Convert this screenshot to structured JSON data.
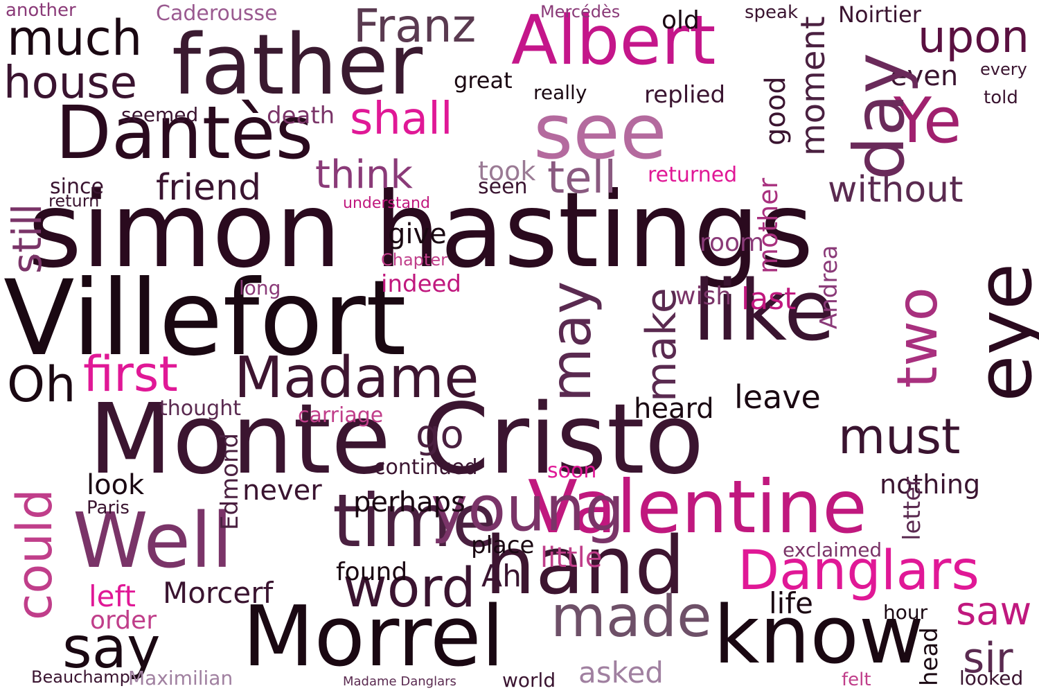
{
  "words": [
    {
      "text": "simon hastings",
      "color": "#2a0a1e",
      "weight": 1.0
    },
    {
      "text": "Villefort",
      "color": "#1a0812",
      "weight": 0.97
    },
    {
      "text": "Monte Cristo",
      "color": "#3b1530",
      "weight": 0.97
    },
    {
      "text": "Albert",
      "color": "#c4168a",
      "weight": 0.62
    },
    {
      "text": "father",
      "color": "#3a1a30",
      "weight": 0.7
    },
    {
      "text": "Dantès",
      "color": "#2a0a1e",
      "weight": 0.62
    },
    {
      "text": "Valentine",
      "color": "#c0187e",
      "weight": 0.62
    },
    {
      "text": "Morrel",
      "color": "#1a0812",
      "weight": 0.66
    },
    {
      "text": "know",
      "color": "#1a0812",
      "weight": 0.64
    },
    {
      "text": "hand",
      "color": "#3d1530",
      "weight": 0.64
    },
    {
      "text": "Madame",
      "color": "#3d1530",
      "weight": 0.45
    },
    {
      "text": "Danglars",
      "color": "#e01896",
      "weight": 0.45
    },
    {
      "text": "Well",
      "color": "#7a3468",
      "weight": 0.6
    },
    {
      "text": "like",
      "color": "#3a1430",
      "weight": 0.62
    },
    {
      "text": "see",
      "color": "#b46a9e",
      "weight": 0.58
    },
    {
      "text": "time",
      "color": "#4a2040",
      "weight": 0.55
    },
    {
      "text": "say",
      "color": "#1a0812",
      "weight": 0.5
    },
    {
      "text": "made",
      "color": "#6e5068",
      "weight": 0.42
    },
    {
      "text": "young",
      "color": "#7a3468",
      "weight": 0.42
    },
    {
      "text": "Ye",
      "color": "#a0206e",
      "weight": 0.55
    },
    {
      "text": "eye",
      "color": "#2a0a1e",
      "weight": 0.5
    },
    {
      "text": "two",
      "color": "#a8307e",
      "weight": 0.55
    },
    {
      "text": "day",
      "color": "#6a2a5a",
      "weight": 0.45
    },
    {
      "text": "may",
      "color": "#5a2a50",
      "weight": 0.48
    },
    {
      "text": "much",
      "color": "#1a0812",
      "weight": 0.4
    },
    {
      "text": "house",
      "color": "#3a1430",
      "weight": 0.4
    },
    {
      "text": "Franz",
      "color": "#5a3a50",
      "weight": 0.4
    },
    {
      "text": "upon",
      "color": "#5a1040",
      "weight": 0.36
    },
    {
      "text": "first",
      "color": "#e01896",
      "weight": 0.4
    },
    {
      "text": "Oh",
      "color": "#1a0812",
      "weight": 0.36
    },
    {
      "text": "could",
      "color": "#c03e8a",
      "weight": 0.42
    },
    {
      "text": "word",
      "color": "#3a1430",
      "weight": 0.4
    },
    {
      "text": "must",
      "color": "#3a1430",
      "weight": 0.38
    },
    {
      "text": "shall",
      "color": "#e01896",
      "weight": 0.36
    },
    {
      "text": "tell",
      "color": "#8a5a80",
      "weight": 0.36
    },
    {
      "text": "still",
      "color": "#7a3468",
      "weight": 0.38
    },
    {
      "text": "friend",
      "color": "#3a1430",
      "weight": 0.3
    },
    {
      "text": "think",
      "color": "#8a3a78",
      "weight": 0.3
    },
    {
      "text": "without",
      "color": "#5a2a50",
      "weight": 0.3
    },
    {
      "text": "moment",
      "color": "#4a2040",
      "weight": 0.28
    },
    {
      "text": "make",
      "color": "#5a2a50",
      "weight": 0.34
    },
    {
      "text": "go",
      "color": "#4a2040",
      "weight": 0.3
    },
    {
      "text": "sir",
      "color": "#5a2a50",
      "weight": 0.3
    },
    {
      "text": "saw",
      "color": "#c0187e",
      "weight": 0.3
    },
    {
      "text": "asked",
      "color": "#a080a0",
      "weight": 0.24
    },
    {
      "text": "left",
      "color": "#e01896",
      "weight": 0.24
    },
    {
      "text": "Morcerf",
      "color": "#3a1430",
      "weight": 0.24
    },
    {
      "text": "Maximilian",
      "color": "#a080a0",
      "weight": 0.18
    },
    {
      "text": "Beauchamp",
      "color": "#3a1430",
      "weight": 0.14
    },
    {
      "text": "Caderousse",
      "color": "#9a5a90",
      "weight": 0.16
    },
    {
      "text": "Noirtier",
      "color": "#3a1430",
      "weight": 0.16
    },
    {
      "text": "Mercédès",
      "color": "#8a3a78",
      "weight": 0.12
    },
    {
      "text": "another",
      "color": "#8a3a78",
      "weight": 0.13
    },
    {
      "text": "replied",
      "color": "#3a1430",
      "weight": 0.18
    },
    {
      "text": "seemed",
      "color": "#3a1430",
      "weight": 0.14
    },
    {
      "text": "death",
      "color": "#7a3468",
      "weight": 0.18
    },
    {
      "text": "since",
      "color": "#3a1430",
      "weight": 0.16
    },
    {
      "text": "return",
      "color": "#3a1430",
      "weight": 0.13
    },
    {
      "text": "took",
      "color": "#9a7a94",
      "weight": 0.18
    },
    {
      "text": "seen",
      "color": "#3a1430",
      "weight": 0.14
    },
    {
      "text": "returned",
      "color": "#e01896",
      "weight": 0.14
    },
    {
      "text": "understand",
      "color": "#c0187e",
      "weight": 0.12
    },
    {
      "text": "give",
      "color": "#1a0812",
      "weight": 0.18
    },
    {
      "text": "mother",
      "color": "#a8307e",
      "weight": 0.16
    },
    {
      "text": "Andrea",
      "color": "#8a3a78",
      "weight": 0.16
    },
    {
      "text": "head",
      "color": "#1a0812",
      "weight": 0.2
    },
    {
      "text": "last",
      "color": "#c0187e",
      "weight": 0.16
    },
    {
      "text": "wish",
      "color": "#7a3468",
      "weight": 0.16
    },
    {
      "text": "indeed",
      "color": "#c0187e",
      "weight": 0.14
    },
    {
      "text": "long",
      "color": "#8a3a78",
      "weight": 0.16
    },
    {
      "text": "room",
      "color": "#8a3a78",
      "weight": 0.18
    },
    {
      "text": "never",
      "color": "#3a1430",
      "weight": 0.18
    },
    {
      "text": "look",
      "color": "#1a0812",
      "weight": 0.18
    },
    {
      "text": "perhaps",
      "color": "#1a0812",
      "weight": 0.14
    },
    {
      "text": "continued",
      "color": "#3a1430",
      "weight": 0.14
    },
    {
      "text": "carriage",
      "color": "#c03e8a",
      "weight": 0.14
    },
    {
      "text": "thought",
      "color": "#5a2a50",
      "weight": 0.18
    },
    {
      "text": "leave",
      "color": "#1a0812",
      "weight": 0.18
    },
    {
      "text": "heard",
      "color": "#1a0812",
      "weight": 0.16
    },
    {
      "text": "nothing",
      "color": "#3a1430",
      "weight": 0.16
    },
    {
      "text": "letter",
      "color": "#5a2a50",
      "weight": 0.16
    },
    {
      "text": "life",
      "color": "#1a0812",
      "weight": 0.16
    },
    {
      "text": "found",
      "color": "#1a0812",
      "weight": 0.14
    },
    {
      "text": "Ah",
      "color": "#3a1430",
      "weight": 0.18
    },
    {
      "text": "little",
      "color": "#c03e8a",
      "weight": 0.16
    },
    {
      "text": "exclaimed",
      "color": "#7a3468",
      "weight": 0.12
    },
    {
      "text": "good",
      "color": "#3a1430",
      "weight": 0.16
    },
    {
      "text": "even",
      "color": "#3a1430",
      "weight": 0.14
    },
    {
      "text": "great",
      "color": "#1a0812",
      "weight": 0.14
    },
    {
      "text": "order",
      "color": "#c03e8a",
      "weight": 0.14
    },
    {
      "text": "Edmond",
      "color": "#4a2040",
      "weight": 0.14
    },
    {
      "text": "Paris",
      "color": "#3a1430",
      "weight": 0.12
    },
    {
      "text": "Chapter",
      "color": "#c03e8a",
      "weight": 0.1
    },
    {
      "text": "place",
      "color": "#1a0812",
      "weight": 0.14
    },
    {
      "text": "soon",
      "color": "#e01896",
      "weight": 0.12
    },
    {
      "text": "hour",
      "color": "#1a0812",
      "weight": 0.12
    },
    {
      "text": "looked",
      "color": "#3a1430",
      "weight": 0.12
    },
    {
      "text": "world",
      "color": "#3a1430",
      "weight": 0.12
    },
    {
      "text": "felt",
      "color": "#c03e8a",
      "weight": 0.12
    },
    {
      "text": "Madame Danglars",
      "color": "#5a2a50",
      "weight": 0.08
    },
    {
      "text": "speak",
      "color": "#3a1430",
      "weight": 0.12
    },
    {
      "text": "old",
      "color": "#1a0812",
      "weight": 0.14
    },
    {
      "text": "every",
      "color": "#3a1430",
      "weight": 0.1
    },
    {
      "text": "told",
      "color": "#3a1430",
      "weight": 0.1
    },
    {
      "text": "really",
      "color": "#1a0812",
      "weight": 0.12
    }
  ]
}
